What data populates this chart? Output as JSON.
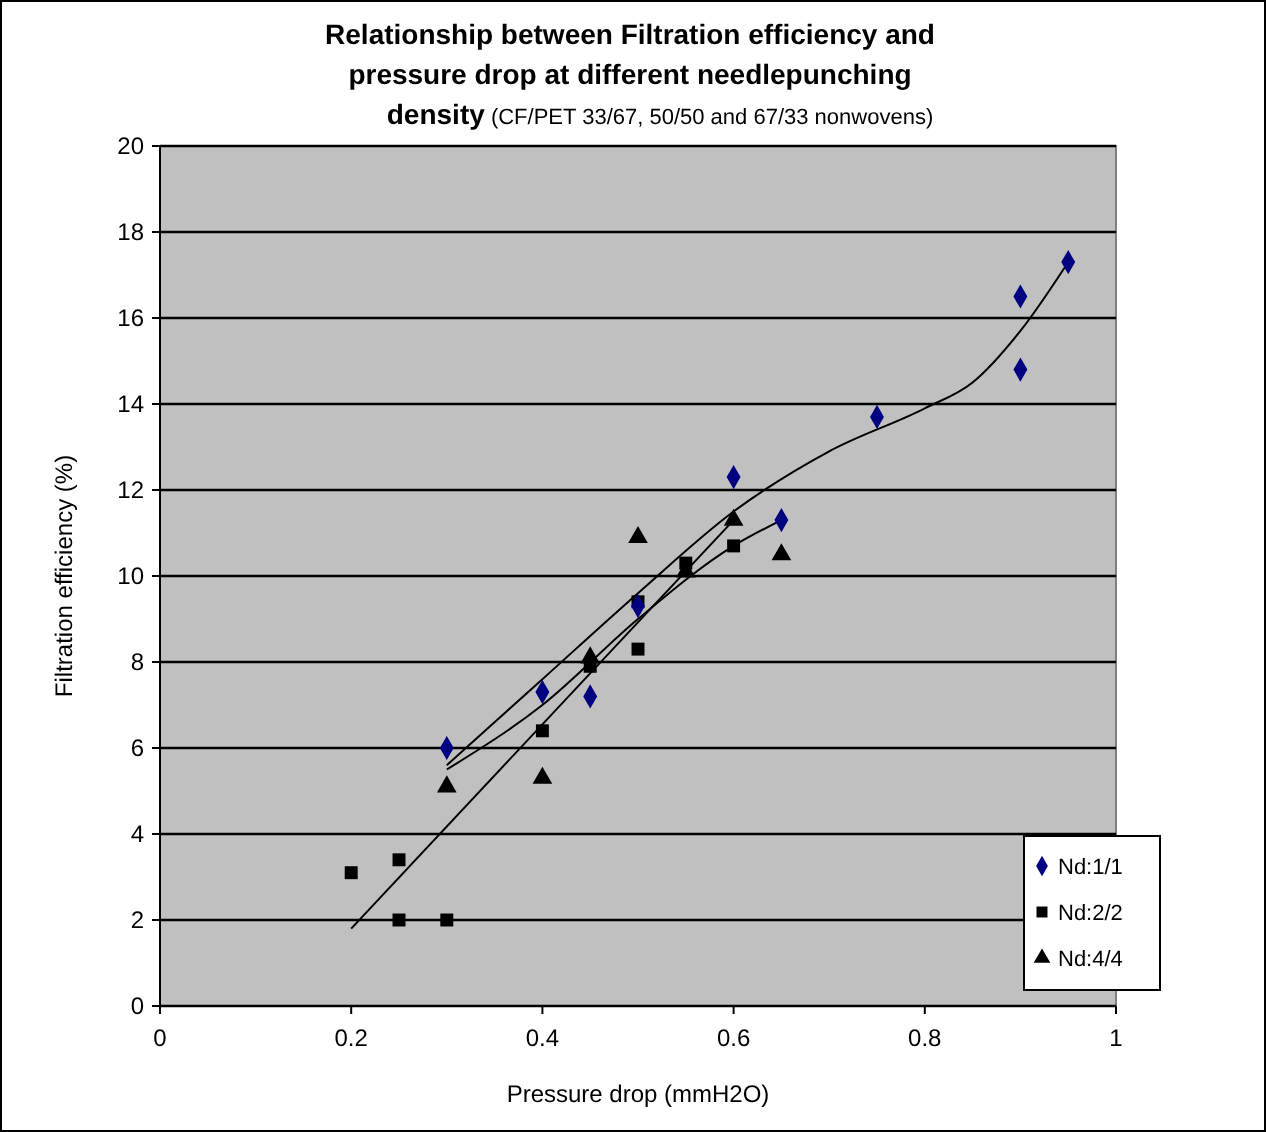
{
  "chart_data": {
    "type": "scatter",
    "title": "Relationship between Filtration efficiency and pressure drop at different needlepunching density",
    "subtitle": "(CF/PET 33/67, 50/50 and 67/33 nonwovens)",
    "xlabel": "Pressure drop (mmH2O)",
    "ylabel": "Filtration efficiency (%)",
    "xlim": [
      0,
      1
    ],
    "ylim": [
      0,
      20
    ],
    "xticks": [
      0,
      0.2,
      0.4,
      0.6,
      0.8,
      1
    ],
    "yticks": [
      0,
      2,
      4,
      6,
      8,
      10,
      12,
      14,
      16,
      18,
      20
    ],
    "grid": "y",
    "legend": "bottom right",
    "series": [
      {
        "name": "Nd:1/1",
        "color": "#000080",
        "marker": "diamond",
        "x": [
          0.3,
          0.4,
          0.45,
          0.5,
          0.6,
          0.65,
          0.75,
          0.9,
          0.9,
          0.95
        ],
        "values": [
          6.0,
          7.3,
          7.2,
          9.3,
          12.3,
          11.3,
          13.7,
          16.5,
          14.8,
          17.3
        ]
      },
      {
        "name": "Nd:2/2",
        "color": "#000000",
        "marker": "square",
        "x": [
          0.2,
          0.25,
          0.25,
          0.3,
          0.4,
          0.45,
          0.5,
          0.5,
          0.55,
          0.6
        ],
        "values": [
          3.1,
          3.4,
          2.0,
          2.0,
          6.4,
          7.9,
          9.4,
          8.3,
          10.3,
          10.7
        ]
      },
      {
        "name": "Nd:4/4",
        "color": "#000000",
        "marker": "triangle",
        "x": [
          0.3,
          0.4,
          0.45,
          0.5,
          0.55,
          0.6,
          0.65
        ],
        "values": [
          5.1,
          5.3,
          8.1,
          10.9,
          10.1,
          11.3,
          10.5
        ]
      },
      {
        "type": "line",
        "color": "#000000",
        "marker": "none",
        "x": [
          0.3,
          0.4,
          0.5,
          0.6,
          0.7,
          0.8,
          0.85,
          0.9,
          0.95
        ],
        "values": [
          5.6,
          7.6,
          9.6,
          11.5,
          12.9,
          13.9,
          14.5,
          15.7,
          17.3
        ]
      },
      {
        "type": "line",
        "color": "#000000",
        "marker": "none",
        "x": [
          0.2,
          0.6
        ],
        "values": [
          1.8,
          11.3
        ]
      },
      {
        "type": "line",
        "color": "#000000",
        "marker": "none",
        "x": [
          0.3,
          0.4,
          0.5,
          0.6,
          0.65
        ],
        "values": [
          5.5,
          7.0,
          9.0,
          10.7,
          11.3
        ]
      }
    ]
  }
}
